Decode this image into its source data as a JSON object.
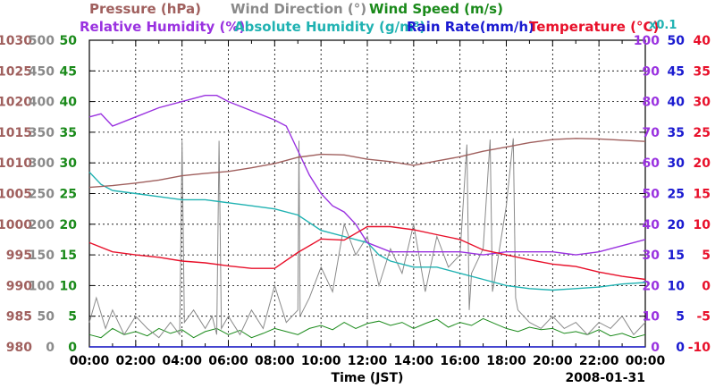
{
  "chart_data": {
    "type": "line",
    "date": "2008-01-31",
    "xlabel": "Time (JST)",
    "x_ticks": [
      "00:00",
      "02:00",
      "04:00",
      "06:00",
      "08:00",
      "10:00",
      "12:00",
      "14:00",
      "16:00",
      "18:00",
      "20:00",
      "22:00",
      "00:00"
    ],
    "title_rows": [
      [
        {
          "text": "Pressure (hPa)",
          "color": "#a0605e"
        },
        {
          "text": "Wind Direction (°)",
          "color": "#8a8a8a"
        },
        {
          "text": "Wind Speed (m/s)",
          "color": "#1a8a1a"
        }
      ],
      [
        {
          "text": "Relative Humidity (%)",
          "color": "#9a32e0"
        },
        {
          "text": "Absolute Humidity (g/m³)",
          "color": "#20b2b2"
        },
        {
          "text": "Rain Rate(mm/h)",
          "color": "#1a1ad0"
        },
        {
          "text": "Temperature (°C)",
          "color": "#e8102a"
        }
      ]
    ],
    "rain_scale_note": "x0.1",
    "axes": {
      "pressure": {
        "name": "Pressure (hPa)",
        "color": "#a0605e",
        "min": 980,
        "max": 1030,
        "ticks": [
          "980",
          "985",
          "990",
          "995",
          "1000",
          "1005",
          "1010",
          "1015",
          "1020",
          "1025",
          "1030"
        ]
      },
      "wind_direction": {
        "name": "Wind Direction (°)",
        "color": "#8a8a8a",
        "min": 0,
        "max": 500,
        "ticks": [
          "0",
          "50",
          "100",
          "150",
          "200",
          "250",
          "300",
          "350",
          "400",
          "450",
          "500"
        ]
      },
      "wind_speed": {
        "name": "Wind Speed (m/s)",
        "color": "#1a8a1a",
        "min": 0,
        "max": 50,
        "ticks": [
          "0",
          "5",
          "10",
          "15",
          "20",
          "25",
          "30",
          "35",
          "40",
          "45",
          "50"
        ]
      },
      "relative_humidity": {
        "name": "Relative Humidity (%)",
        "color": "#9a32e0",
        "min": 0,
        "max": 100,
        "ticks": [
          "0",
          "10",
          "20",
          "30",
          "40",
          "50",
          "60",
          "70",
          "80",
          "90",
          "100"
        ]
      },
      "rain_rate": {
        "name": "Rain Rate (mm/h)",
        "color": "#1a1ad0",
        "min": 0,
        "max": 50,
        "ticks": [
          "0",
          "5",
          "10",
          "15",
          "20",
          "25",
          "30",
          "35",
          "40",
          "45",
          "50"
        ]
      },
      "temperature": {
        "name": "Temperature (°C)",
        "color": "#e8102a",
        "min": -10,
        "max": 40,
        "ticks": [
          "-10",
          "-5",
          "0",
          "5",
          "10",
          "15",
          "20",
          "25",
          "30",
          "35",
          "40"
        ]
      }
    },
    "series": [
      {
        "name": "Pressure",
        "axis": "pressure",
        "color": "#a0605e",
        "x": [
          0,
          1,
          2,
          3,
          4,
          5,
          6,
          7,
          8,
          9,
          10,
          11,
          12,
          13,
          14,
          15,
          16,
          17,
          18,
          19,
          20,
          21,
          22,
          23,
          24
        ],
        "values": [
          1006.0,
          1006.3,
          1006.7,
          1007.2,
          1007.9,
          1008.3,
          1008.6,
          1009.2,
          1009.9,
          1010.9,
          1011.4,
          1011.3,
          1010.6,
          1010.2,
          1009.6,
          1010.3,
          1011.0,
          1011.9,
          1012.6,
          1013.3,
          1013.8,
          1014.0,
          1013.9,
          1013.7,
          1013.5
        ]
      },
      {
        "name": "Relative Humidity",
        "axis": "relative_humidity",
        "color": "#9a32e0",
        "x": [
          0,
          0.5,
          1,
          2,
          3,
          4,
          5,
          5.5,
          6,
          7,
          8,
          8.5,
          9,
          9.5,
          10,
          10.5,
          11,
          11.5,
          12,
          13,
          14,
          15,
          16,
          17,
          18,
          19,
          20,
          21,
          22,
          23,
          24
        ],
        "values": [
          75,
          76,
          72,
          75,
          78,
          80,
          82,
          82,
          80,
          77,
          74,
          72,
          64,
          56,
          50,
          46,
          44,
          40,
          34,
          31,
          31,
          31,
          31,
          30,
          31,
          31,
          31,
          30,
          31,
          33,
          35
        ]
      },
      {
        "name": "Absolute Humidity",
        "axis": "relative_humidity",
        "color": "#20b2b2",
        "x": [
          0,
          0.5,
          1,
          2,
          3,
          4,
          5,
          6,
          7,
          8,
          9,
          10,
          11,
          12,
          12.5,
          13,
          14,
          15,
          16,
          17,
          18,
          19,
          20,
          21,
          22,
          23,
          24
        ],
        "values": [
          57,
          53,
          51,
          50,
          49,
          48,
          48,
          47,
          46,
          45,
          43,
          38,
          36,
          34,
          30,
          28,
          26,
          26,
          24,
          22,
          20,
          19,
          18.5,
          19,
          19.5,
          20.5,
          21
        ]
      },
      {
        "name": "Rain Rate",
        "axis": "rain_rate",
        "color": "#1a1ad0",
        "x": [
          0,
          24
        ],
        "values": [
          0,
          0
        ]
      },
      {
        "name": "Temperature",
        "axis": "temperature",
        "color": "#e8102a",
        "x": [
          0,
          1,
          2,
          3,
          4,
          5,
          6,
          7,
          8,
          9,
          10,
          11,
          12,
          13,
          14,
          15,
          16,
          17,
          18,
          19,
          20,
          21,
          22,
          23,
          24
        ],
        "values": [
          7.0,
          5.5,
          5.0,
          4.6,
          4.0,
          3.7,
          3.2,
          2.8,
          2.8,
          5.4,
          7.6,
          7.4,
          9.6,
          9.6,
          9.1,
          8.3,
          7.5,
          5.8,
          5.0,
          4.2,
          3.5,
          3.1,
          2.2,
          1.5,
          1.0
        ]
      },
      {
        "name": "Wind Direction",
        "axis": "wind_direction",
        "color": "#8a8a8a",
        "x": [
          0,
          0.3,
          0.7,
          1.0,
          1.5,
          2.0,
          2.5,
          3.0,
          3.5,
          3.9,
          4.0,
          4.1,
          4.5,
          5.0,
          5.3,
          5.5,
          5.6,
          5.7,
          6.0,
          6.5,
          7.0,
          7.5,
          8.0,
          8.5,
          9.0,
          9.05,
          9.1,
          9.5,
          10.0,
          10.5,
          11.0,
          11.5,
          12.0,
          12.5,
          13.0,
          13.5,
          14.0,
          14.5,
          15.0,
          15.5,
          16.0,
          16.3,
          16.4,
          16.5,
          17.0,
          17.3,
          17.4,
          17.5,
          18.0,
          18.3,
          18.4,
          18.5,
          19.0,
          19.5,
          20.0,
          20.5,
          21.0,
          21.5,
          22.0,
          22.5,
          23.0,
          23.5,
          24.0
        ],
        "values": [
          40,
          80,
          30,
          60,
          20,
          50,
          30,
          15,
          40,
          20,
          336,
          40,
          60,
          30,
          50,
          20,
          336,
          30,
          50,
          20,
          60,
          30,
          100,
          40,
          60,
          336,
          50,
          80,
          130,
          90,
          200,
          150,
          180,
          100,
          160,
          120,
          200,
          90,
          180,
          130,
          150,
          330,
          60,
          120,
          160,
          338,
          90,
          110,
          230,
          340,
          80,
          60,
          40,
          30,
          50,
          30,
          40,
          20,
          40,
          30,
          50,
          20,
          40
        ]
      },
      {
        "name": "Wind Speed",
        "axis": "wind_speed",
        "color": "#1a8a1a",
        "x": [
          0,
          0.5,
          1,
          1.5,
          2,
          2.5,
          3,
          3.5,
          4,
          4.5,
          5,
          5.5,
          6,
          6.5,
          7,
          7.5,
          8,
          8.5,
          9,
          9.5,
          10,
          10.5,
          11,
          11.5,
          12,
          12.5,
          13,
          13.5,
          14,
          14.5,
          15,
          15.5,
          16,
          16.5,
          17,
          17.5,
          18,
          18.5,
          19,
          19.5,
          20,
          20.5,
          21,
          21.5,
          22,
          22.5,
          23,
          23.5,
          24
        ],
        "values": [
          2,
          1.5,
          3,
          2,
          2.5,
          1.8,
          3,
          2.2,
          2.8,
          1.5,
          2.5,
          3,
          2,
          2.7,
          1.5,
          2.2,
          3,
          2.5,
          2,
          3,
          3.5,
          2.8,
          4,
          3,
          3.8,
          4.2,
          3.5,
          4,
          3,
          3.8,
          4.5,
          3.2,
          4,
          3.5,
          4.6,
          3.8,
          3,
          2.5,
          3.2,
          2.8,
          3,
          2.2,
          2.5,
          2,
          2.8,
          1.8,
          2.2,
          1.5,
          2
        ]
      }
    ]
  }
}
